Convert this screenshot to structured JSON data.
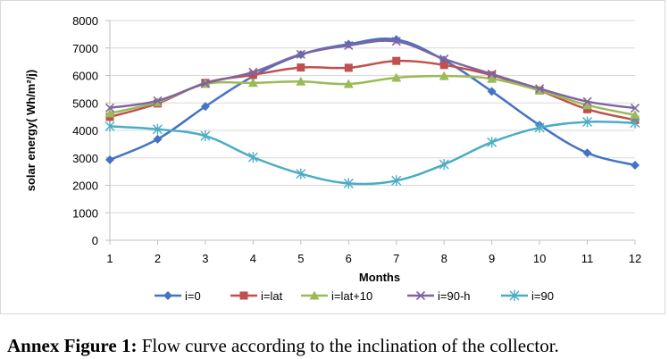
{
  "chart_data": {
    "type": "line",
    "title": "",
    "xlabel": "Months",
    "ylabel": "solar energy( Wh/m²/j)",
    "x": [
      1,
      2,
      3,
      4,
      5,
      6,
      7,
      8,
      9,
      10,
      11,
      12
    ],
    "ylim": [
      0,
      8000
    ],
    "yticks": [
      0,
      1000,
      2000,
      3000,
      4000,
      5000,
      6000,
      7000,
      8000
    ],
    "grid": "horizontal",
    "legend_position": "bottom",
    "series": [
      {
        "name": "i=0",
        "color": "#4472c4",
        "marker": "diamond",
        "values": [
          2930,
          3680,
          4870,
          5970,
          6760,
          7140,
          7310,
          6560,
          5420,
          4190,
          3180,
          2730
        ]
      },
      {
        "name": "i=lat",
        "color": "#c0504d",
        "marker": "square",
        "values": [
          4490,
          4980,
          5730,
          6020,
          6290,
          6280,
          6530,
          6380,
          6010,
          5450,
          4770,
          4380
        ]
      },
      {
        "name": "i=lat+10",
        "color": "#9bbb59",
        "marker": "triangle",
        "values": [
          4620,
          5030,
          5690,
          5730,
          5780,
          5690,
          5920,
          5980,
          5880,
          5450,
          4920,
          4560
        ]
      },
      {
        "name": "i=90-h",
        "color": "#8064a2",
        "marker": "x",
        "values": [
          4820,
          5080,
          5710,
          6120,
          6770,
          7090,
          7240,
          6600,
          6050,
          5520,
          5050,
          4810
        ]
      },
      {
        "name": "i=90",
        "color": "#4bacc6",
        "marker": "asterisk",
        "values": [
          4150,
          4040,
          3800,
          3020,
          2420,
          2070,
          2170,
          2760,
          3570,
          4100,
          4310,
          4270
        ]
      }
    ]
  },
  "caption": {
    "label": "Annex Figure 1:",
    "text": " Flow curve according to the inclination of the collector."
  }
}
